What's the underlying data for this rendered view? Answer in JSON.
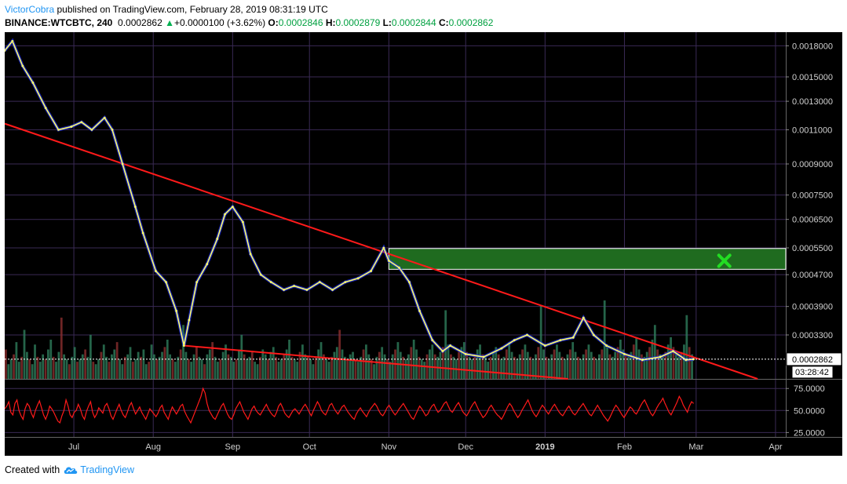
{
  "header": {
    "author": "VictorCobra",
    "published": "published on TradingView.com, February 28, 2019 08:31:19 UTC",
    "symbol": "BINANCE:WTCBTC, 240",
    "last": "0.0002862",
    "change_arrow": "▲",
    "change": "+0.0000100 (+3.62%)",
    "o_label": "O:",
    "o_value": "0.0002846",
    "h_label": "H:",
    "h_value": "0.0002879",
    "l_label": "L:",
    "l_value": "0.0002844",
    "c_label": "C:",
    "c_value": "0.0002862"
  },
  "footer": {
    "prefix": "Created with",
    "brand": "TradingView",
    "logo_icon": "tradingview-cloud-icon"
  },
  "colors": {
    "background": "#000000",
    "grid": "#3a2a55",
    "price_line": "#ffff66",
    "price_shadow": "#2233ff",
    "trendline": "#ff1a1a",
    "target_zone": "#1f6b1f",
    "target_marker": "#22dd22",
    "rsi": "#ff1a1a",
    "volume_up": "#2e7d5b",
    "volume_down": "#8b2e2e",
    "axis_text": "#d0d0d0"
  },
  "chart_data": {
    "type": "line",
    "title": "",
    "y_scale": "log",
    "xlabel": "",
    "ylabel": "",
    "x_ticks": [
      "Jul",
      "Aug",
      "Sep",
      "Oct",
      "Nov",
      "Dec",
      "2019",
      "Feb",
      "Mar",
      "Apr"
    ],
    "y_ticks": [
      "0.0018000",
      "0.0015000",
      "0.0013000",
      "0.0011000",
      "0.0009000",
      "0.0007500",
      "0.0006500",
      "0.0005500",
      "0.0004700",
      "0.0003900",
      "0.0003300"
    ],
    "ylim": [
      0.000255,
      0.00195
    ],
    "xlim": [
      "2018-06-04",
      "2019-04-05"
    ],
    "series": [
      {
        "x": [
          "2018-06-04",
          "2018-06-07",
          "2018-06-11",
          "2018-06-15",
          "2018-06-20",
          "2018-06-25",
          "2018-06-30",
          "2018-07-04",
          "2018-07-08",
          "2018-07-13",
          "2018-07-16",
          "2018-07-20",
          "2018-07-25",
          "2018-07-28",
          "2018-08-02",
          "2018-08-06",
          "2018-08-10",
          "2018-08-13",
          "2018-08-15",
          "2018-08-18",
          "2018-08-22",
          "2018-08-26",
          "2018-08-29",
          "2018-09-01",
          "2018-09-05",
          "2018-09-08",
          "2018-09-12",
          "2018-09-16",
          "2018-09-21",
          "2018-09-25",
          "2018-09-30",
          "2018-10-05",
          "2018-10-10",
          "2018-10-15",
          "2018-10-20",
          "2018-10-25",
          "2018-10-30",
          "2018-11-01",
          "2018-11-05",
          "2018-11-09",
          "2018-11-13",
          "2018-11-18",
          "2018-11-22",
          "2018-11-25",
          "2018-12-01",
          "2018-12-08",
          "2018-12-15",
          "2018-12-20",
          "2018-12-25",
          "2019-01-01",
          "2019-01-07",
          "2019-01-12",
          "2019-01-16",
          "2019-01-20",
          "2019-01-25",
          "2019-02-01",
          "2019-02-08",
          "2019-02-15",
          "2019-02-20",
          "2019-02-25",
          "2019-02-28"
        ],
        "y": [
          0.00175,
          0.00185,
          0.0016,
          0.00145,
          0.00125,
          0.0011,
          0.00112,
          0.00115,
          0.0011,
          0.00118,
          0.0011,
          0.0009,
          0.0007,
          0.0006,
          0.00048,
          0.00045,
          0.00038,
          0.00031,
          0.00036,
          0.00045,
          0.0005,
          0.00058,
          0.00067,
          0.0007,
          0.00064,
          0.00053,
          0.00047,
          0.00045,
          0.00043,
          0.00044,
          0.00043,
          0.00045,
          0.00043,
          0.00045,
          0.00046,
          0.00048,
          0.00055,
          0.00051,
          0.00049,
          0.00045,
          0.00038,
          0.00032,
          0.0003,
          0.00031,
          0.000295,
          0.00029,
          0.000305,
          0.00032,
          0.00033,
          0.00031,
          0.00032,
          0.000325,
          0.000365,
          0.00033,
          0.00031,
          0.000295,
          0.000285,
          0.00029,
          0.0003,
          0.000285,
          0.0002862
        ]
      }
    ],
    "trendlines": [
      {
        "name": "upper",
        "from": [
          "2018-06-04",
          0.00114
        ],
        "to": [
          "2019-03-25",
          0.000255
        ]
      },
      {
        "name": "lower",
        "from": [
          "2018-08-13",
          0.00031
        ],
        "to": [
          "2019-01-10",
          0.000255
        ]
      }
    ],
    "target_zone": {
      "x_from": "2018-11-01",
      "x_to": "2019-04-05",
      "y_from": 0.000485,
      "y_to": 0.000548
    },
    "target_marker": {
      "x": "2019-03-12",
      "y": 0.00051
    },
    "price_label": "0.0002862",
    "countdown_label": "03:28:42",
    "rsi": {
      "ticks": [
        "75.0000",
        "50.0000",
        "25.0000"
      ],
      "ylim": [
        20,
        85
      ],
      "values": [
        52,
        55,
        60,
        48,
        45,
        58,
        62,
        50,
        44,
        40,
        52,
        58,
        55,
        47,
        42,
        50,
        56,
        61,
        53,
        45,
        40,
        46,
        55,
        52,
        48,
        43,
        38,
        36,
        44,
        50,
        62,
        55,
        45,
        42,
        48,
        50,
        57,
        52,
        44,
        40,
        49,
        55,
        60,
        48,
        42,
        46,
        53,
        50,
        47,
        55,
        58,
        52,
        44,
        40,
        46,
        52,
        57,
        50,
        45,
        42,
        48,
        55,
        59,
        52,
        46,
        50,
        54,
        48,
        44,
        40,
        46,
        52,
        49,
        46,
        43,
        47,
        53,
        56,
        48,
        44,
        40,
        48,
        54,
        50,
        46,
        50,
        55,
        57,
        49,
        44,
        40,
        36,
        42,
        48,
        54,
        60,
        66,
        75,
        70,
        58,
        50,
        46,
        42,
        40,
        45,
        50,
        55,
        58,
        52,
        46,
        42,
        40,
        45,
        52,
        56,
        60,
        54,
        48,
        44,
        40,
        46,
        52,
        55,
        50,
        47,
        45,
        49,
        53,
        57,
        52,
        48,
        45,
        43,
        48,
        55,
        58,
        53,
        47,
        44,
        42,
        46,
        50,
        52,
        49,
        46,
        50,
        54,
        57,
        53,
        48,
        44,
        50,
        55,
        60,
        56,
        50,
        47,
        45,
        50,
        56,
        58,
        53,
        49,
        46,
        50,
        54,
        56,
        52,
        48,
        45,
        42,
        40,
        46,
        50,
        53,
        49,
        46,
        43,
        48,
        52,
        55,
        58,
        55,
        50,
        46,
        44,
        48,
        53,
        56,
        52,
        48,
        45,
        48,
        52,
        55,
        58,
        54,
        50,
        46,
        42,
        40,
        45,
        50,
        55,
        52,
        48,
        44,
        46,
        51,
        55,
        57,
        52,
        48,
        50,
        54,
        58,
        60,
        55,
        50,
        48,
        52,
        56,
        59,
        54,
        49,
        46,
        44,
        48,
        53,
        57,
        60,
        55,
        50,
        46,
        42,
        44,
        48,
        53,
        56,
        52,
        48,
        45,
        43,
        40,
        44,
        49,
        54,
        58,
        55,
        50,
        46,
        42,
        45,
        50,
        54,
        58,
        62,
        56,
        50,
        46,
        43,
        47,
        52,
        56,
        53,
        49,
        46,
        50,
        54,
        57,
        53,
        49,
        46,
        44,
        48,
        52,
        55,
        51,
        47,
        45,
        48,
        52,
        55,
        58,
        54,
        50,
        46,
        44,
        48,
        52,
        56,
        52,
        48,
        44,
        41,
        38,
        42,
        47,
        52,
        56,
        53,
        49,
        45,
        42,
        46,
        50,
        54,
        52,
        48,
        46,
        50,
        55,
        59,
        62,
        57,
        52,
        47,
        44,
        48,
        53,
        57,
        60,
        64,
        58,
        53,
        48,
        45,
        50,
        55,
        60,
        66,
        62,
        56,
        52,
        48,
        55,
        60,
        58
      ]
    },
    "volume": [
      12,
      6,
      8,
      10,
      15,
      7,
      9,
      20,
      11,
      8,
      6,
      14,
      9,
      7,
      10,
      8,
      12,
      16,
      9,
      7,
      11,
      25,
      10,
      8,
      6,
      9,
      13,
      7,
      8,
      10,
      12,
      9,
      18,
      7,
      6,
      8,
      11,
      14,
      9,
      7,
      10,
      12,
      15,
      8,
      6,
      9,
      10,
      13,
      7,
      8,
      11,
      9,
      12,
      6,
      7,
      14,
      10,
      8,
      9,
      11,
      13,
      16,
      10,
      8,
      7,
      9,
      12,
      22,
      11,
      8,
      7,
      10,
      13,
      9,
      8,
      6,
      10,
      12,
      15,
      9,
      7,
      8,
      11,
      14,
      10,
      9,
      7,
      8,
      12,
      18,
      10,
      8,
      9,
      11,
      7,
      6,
      9,
      12,
      10,
      8,
      11,
      13,
      9,
      7,
      8,
      10,
      12,
      16,
      9,
      8,
      7,
      11,
      14,
      10,
      9,
      8,
      6,
      9,
      12,
      15,
      10,
      8,
      7,
      9,
      11,
      13,
      20,
      12,
      9,
      8,
      10,
      11,
      8,
      7,
      9,
      12,
      14,
      10,
      8,
      6,
      9,
      11,
      13,
      10,
      8,
      7,
      10,
      12,
      15,
      11,
      9,
      8,
      10,
      13,
      16,
      12,
      9,
      8,
      7,
      10,
      12,
      14,
      10,
      9,
      11,
      13,
      28,
      14,
      10,
      9,
      8,
      11,
      13,
      15,
      11,
      9,
      8,
      10,
      12,
      14,
      10,
      9,
      7,
      9,
      11,
      13,
      10,
      8,
      9,
      12,
      15,
      11,
      9,
      8,
      10,
      12,
      14,
      11,
      9,
      8,
      10,
      13,
      30,
      12,
      9,
      8,
      10,
      12,
      14,
      11,
      9,
      8,
      10,
      12,
      15,
      11,
      9,
      8,
      10,
      12,
      14,
      11,
      9,
      8,
      10,
      12,
      32,
      13,
      10,
      9,
      11,
      13,
      16,
      12,
      10,
      9,
      11,
      14,
      17,
      12,
      10,
      9,
      11,
      13,
      16,
      22,
      12,
      10,
      9,
      11,
      14,
      17,
      13,
      10,
      9,
      11,
      14,
      26,
      13,
      10
    ]
  }
}
